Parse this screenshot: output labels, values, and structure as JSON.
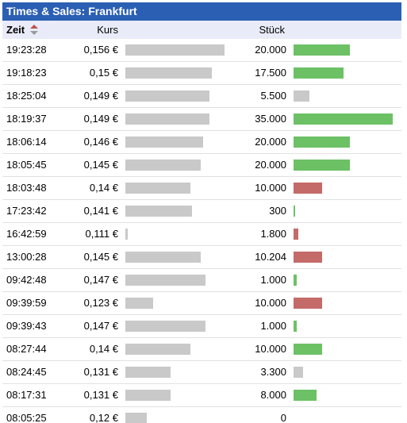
{
  "header": {
    "title": "Times & Sales: Frankfurt"
  },
  "columns": {
    "time": "Zeit",
    "price": "Kurs",
    "qty": "Stück"
  },
  "colors": {
    "header_bg": "#2b5fb3",
    "colhead_bg": "#e9ecf8",
    "price_bar": "#c9c9c9",
    "buy": "#6cc165",
    "sell": "#c46a68",
    "neutral": "#c9c9c9"
  },
  "trades": [
    {
      "time": "19:23:28",
      "price": "0,156 €",
      "price_value": 0.156,
      "qty": "20.000",
      "qty_value": 20000,
      "side": "buy"
    },
    {
      "time": "19:18:23",
      "price": "0,15 €",
      "price_value": 0.15,
      "qty": "17.500",
      "qty_value": 17500,
      "side": "buy"
    },
    {
      "time": "18:25:04",
      "price": "0,149 €",
      "price_value": 0.149,
      "qty": "5.500",
      "qty_value": 5500,
      "side": "neutral"
    },
    {
      "time": "18:19:37",
      "price": "0,149 €",
      "price_value": 0.149,
      "qty": "35.000",
      "qty_value": 35000,
      "side": "buy"
    },
    {
      "time": "18:06:14",
      "price": "0,146 €",
      "price_value": 0.146,
      "qty": "20.000",
      "qty_value": 20000,
      "side": "buy"
    },
    {
      "time": "18:05:45",
      "price": "0,145 €",
      "price_value": 0.145,
      "qty": "20.000",
      "qty_value": 20000,
      "side": "buy"
    },
    {
      "time": "18:03:48",
      "price": "0,14 €",
      "price_value": 0.14,
      "qty": "10.000",
      "qty_value": 10000,
      "side": "sell"
    },
    {
      "time": "17:23:42",
      "price": "0,141 €",
      "price_value": 0.141,
      "qty": "300",
      "qty_value": 300,
      "side": "buy"
    },
    {
      "time": "16:42:59",
      "price": "0,111 €",
      "price_value": 0.111,
      "qty": "1.800",
      "qty_value": 1800,
      "side": "sell"
    },
    {
      "time": "13:00:28",
      "price": "0,145 €",
      "price_value": 0.145,
      "qty": "10.204",
      "qty_value": 10204,
      "side": "sell"
    },
    {
      "time": "09:42:48",
      "price": "0,147 €",
      "price_value": 0.147,
      "qty": "1.000",
      "qty_value": 1000,
      "side": "buy"
    },
    {
      "time": "09:39:59",
      "price": "0,123 €",
      "price_value": 0.123,
      "qty": "10.000",
      "qty_value": 10000,
      "side": "sell"
    },
    {
      "time": "09:39:43",
      "price": "0,147 €",
      "price_value": 0.147,
      "qty": "1.000",
      "qty_value": 1000,
      "side": "buy"
    },
    {
      "time": "08:27:44",
      "price": "0,14 €",
      "price_value": 0.14,
      "qty": "10.000",
      "qty_value": 10000,
      "side": "buy"
    },
    {
      "time": "08:24:45",
      "price": "0,131 €",
      "price_value": 0.131,
      "qty": "3.300",
      "qty_value": 3300,
      "side": "neutral"
    },
    {
      "time": "08:17:31",
      "price": "0,131 €",
      "price_value": 0.131,
      "qty": "8.000",
      "qty_value": 8000,
      "side": "buy"
    },
    {
      "time": "08:05:25",
      "price": "0,12 €",
      "price_value": 0.12,
      "qty": "0",
      "qty_value": 0,
      "side": "none"
    }
  ]
}
